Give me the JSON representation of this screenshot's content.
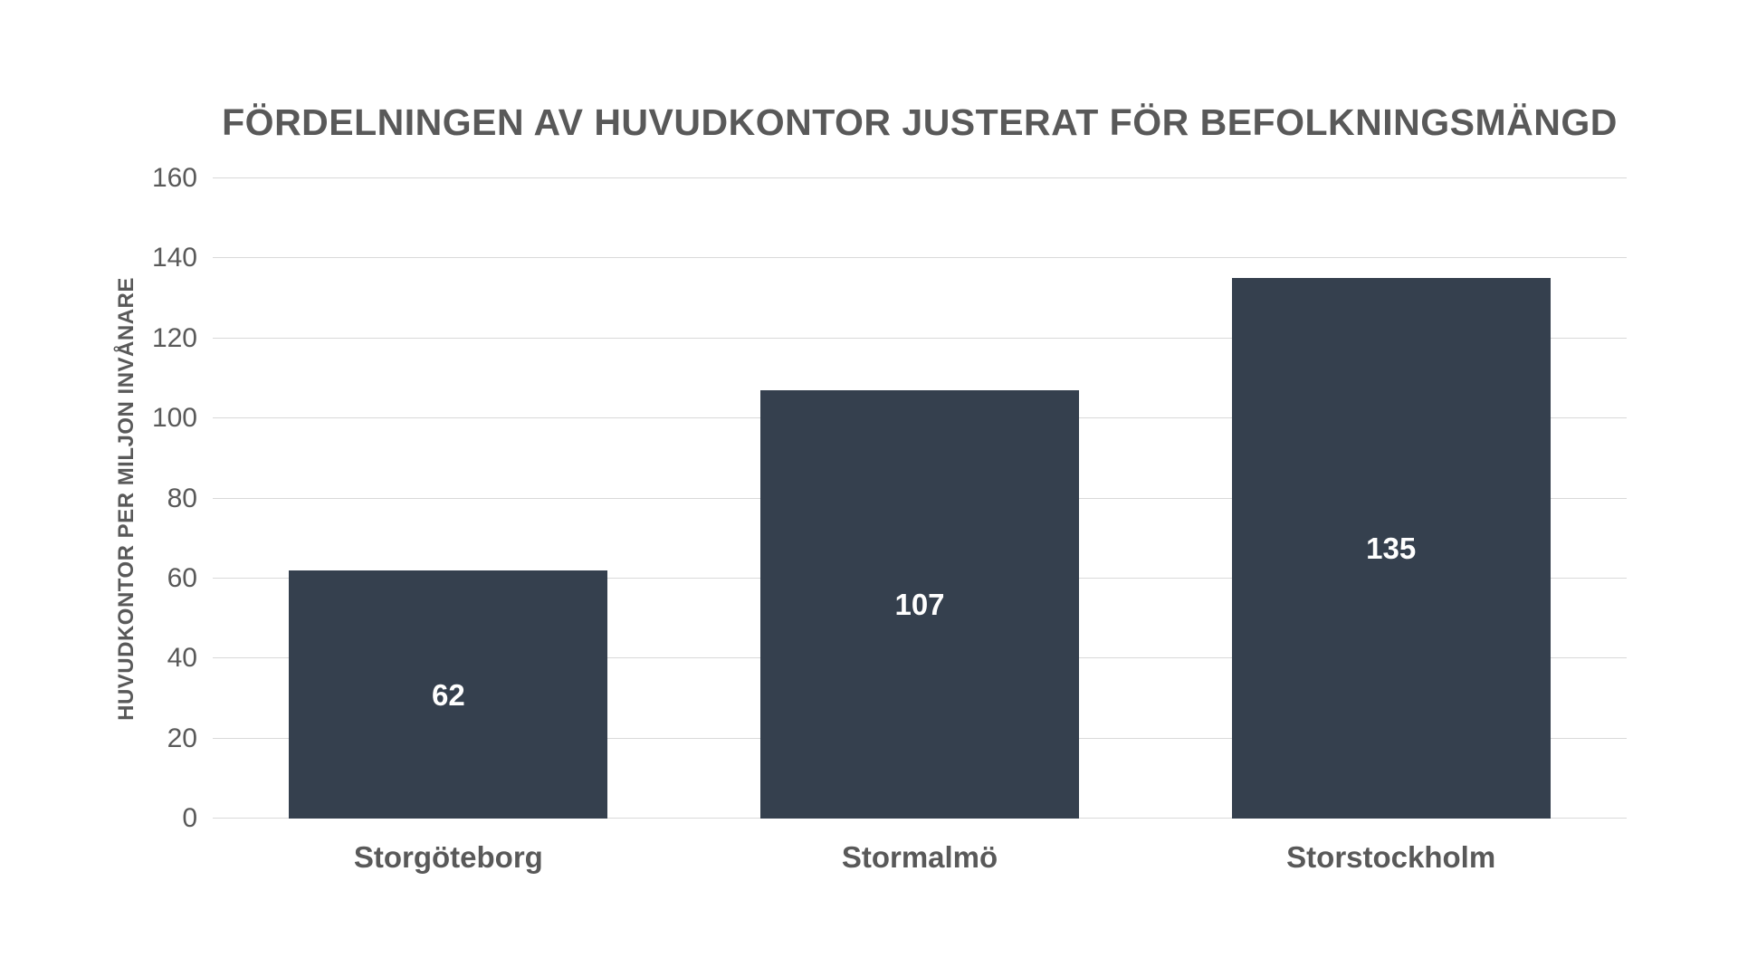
{
  "chart_data": {
    "type": "bar",
    "title": "FÖRDELNINGEN AV HUVUDKONTOR JUSTERAT FÖR BEFOLKNINGSMÄNGD",
    "ylabel": "HUVUDKONTOR PER MILJON INVÅNARE",
    "xlabel": "",
    "categories": [
      "Storgöteborg",
      "Stormalmö",
      "Storstockholm"
    ],
    "values": [
      62,
      107,
      135
    ],
    "data_labels": [
      "62",
      "107",
      "135"
    ],
    "data_label_position": "inside-center",
    "ylim": [
      0,
      160
    ],
    "ytick_interval": 20,
    "yticks": [
      0,
      20,
      40,
      60,
      80,
      100,
      120,
      140,
      160
    ],
    "grid": true,
    "legend": "none",
    "colors": {
      "bar": "#35404E",
      "gridline": "#d9d9d9",
      "axis_text": "#595959",
      "title_text": "#595959",
      "data_label": "#ffffff",
      "background": "#ffffff"
    }
  }
}
